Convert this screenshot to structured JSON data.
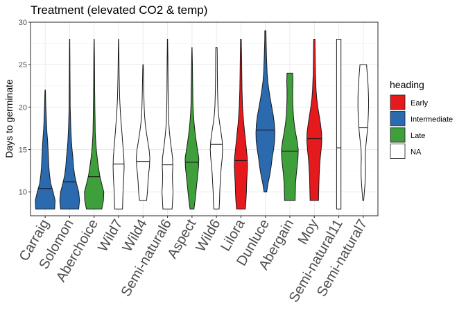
{
  "chart_data": {
    "type": "violin",
    "title": "Treatment (elevated CO2 & temp)",
    "xlabel": "",
    "ylabel": "Days to germinate",
    "ylim": [
      7.2,
      30
    ],
    "yticks": [
      10,
      15,
      20,
      25,
      30
    ],
    "grid": true,
    "legend": {
      "title": "heading",
      "placement": "right",
      "entries": [
        {
          "label": "Early",
          "color": "#e41a1c"
        },
        {
          "label": "Intermediate",
          "color": "#2b6aae"
        },
        {
          "label": "Late",
          "color": "#3e9f3b"
        },
        {
          "label": "NA",
          "color": "#ffffff"
        }
      ]
    },
    "categories": [
      "Carraig",
      "Solomon",
      "Aberchoice",
      "Wild7",
      "Wild4",
      "Semi-natural6",
      "Aspect",
      "Wild6",
      "Lilora",
      "Dunluce",
      "Abergain",
      "Moy",
      "Semi-natural11",
      "Semi-natural7"
    ],
    "violins": [
      {
        "category": "Carraig",
        "heading": "Intermediate",
        "min": 8,
        "max": 22,
        "median": 10.4,
        "profile": [
          [
            8,
            0.86
          ],
          [
            9,
            0.9
          ],
          [
            10,
            0.72
          ],
          [
            11,
            0.5
          ],
          [
            12,
            0.4
          ],
          [
            13,
            0.33
          ],
          [
            14,
            0.3
          ],
          [
            15,
            0.26
          ],
          [
            16,
            0.22
          ],
          [
            17,
            0.16
          ],
          [
            18,
            0.12
          ],
          [
            19,
            0.09
          ],
          [
            20,
            0.06
          ],
          [
            21,
            0.04
          ],
          [
            22,
            0.02
          ]
        ]
      },
      {
        "category": "Solomon",
        "heading": "Intermediate",
        "min": 8,
        "max": 28,
        "median": 11.2,
        "profile": [
          [
            8,
            0.82
          ],
          [
            9,
            0.9
          ],
          [
            10,
            0.82
          ],
          [
            11,
            0.62
          ],
          [
            12,
            0.45
          ],
          [
            13,
            0.35
          ],
          [
            14,
            0.3
          ],
          [
            15,
            0.22
          ],
          [
            16,
            0.16
          ],
          [
            17,
            0.12
          ],
          [
            18,
            0.09
          ],
          [
            19,
            0.07
          ],
          [
            20,
            0.05
          ],
          [
            22,
            0.04
          ],
          [
            24,
            0.03
          ],
          [
            26,
            0.02
          ],
          [
            28,
            0.01
          ]
        ]
      },
      {
        "category": "Aberchoice",
        "heading": "Late",
        "min": 8,
        "max": 28,
        "median": 11.8,
        "profile": [
          [
            8,
            0.7
          ],
          [
            9,
            0.85
          ],
          [
            10,
            0.88
          ],
          [
            11,
            0.68
          ],
          [
            12,
            0.5
          ],
          [
            13,
            0.38
          ],
          [
            14,
            0.28
          ],
          [
            15,
            0.2
          ],
          [
            16,
            0.14
          ],
          [
            17,
            0.1
          ],
          [
            18,
            0.09
          ],
          [
            19,
            0.08
          ],
          [
            20,
            0.07
          ],
          [
            21,
            0.06
          ],
          [
            22,
            0.05
          ],
          [
            24,
            0.04
          ],
          [
            26,
            0.03
          ],
          [
            28,
            0.01
          ]
        ]
      },
      {
        "category": "Wild7",
        "heading": "NA",
        "min": 8,
        "max": 28,
        "median": 13.3,
        "profile": [
          [
            8,
            0.36
          ],
          [
            9,
            0.38
          ],
          [
            10,
            0.4
          ],
          [
            11,
            0.44
          ],
          [
            12,
            0.48
          ],
          [
            13,
            0.5
          ],
          [
            14,
            0.48
          ],
          [
            15,
            0.42
          ],
          [
            16,
            0.36
          ],
          [
            17,
            0.3
          ],
          [
            18,
            0.24
          ],
          [
            19,
            0.18
          ],
          [
            20,
            0.14
          ],
          [
            21,
            0.1
          ],
          [
            22,
            0.08
          ],
          [
            24,
            0.05
          ],
          [
            26,
            0.03
          ],
          [
            28,
            0.01
          ]
        ]
      },
      {
        "category": "Wild4",
        "heading": "NA",
        "min": 9,
        "max": 25,
        "median": 13.6,
        "profile": [
          [
            9,
            0.32
          ],
          [
            10,
            0.4
          ],
          [
            11,
            0.44
          ],
          [
            12,
            0.5
          ],
          [
            13,
            0.58
          ],
          [
            14,
            0.62
          ],
          [
            15,
            0.55
          ],
          [
            16,
            0.42
          ],
          [
            17,
            0.3
          ],
          [
            18,
            0.2
          ],
          [
            19,
            0.14
          ],
          [
            20,
            0.1
          ],
          [
            21,
            0.08
          ],
          [
            22,
            0.06
          ],
          [
            23,
            0.05
          ],
          [
            24,
            0.04
          ],
          [
            25,
            0.02
          ]
        ]
      },
      {
        "category": "Semi-natural6",
        "heading": "NA",
        "min": 8,
        "max": 28,
        "median": 13.2,
        "profile": [
          [
            8,
            0.42
          ],
          [
            9,
            0.46
          ],
          [
            10,
            0.5
          ],
          [
            11,
            0.46
          ],
          [
            12,
            0.44
          ],
          [
            13,
            0.48
          ],
          [
            14,
            0.46
          ],
          [
            15,
            0.36
          ],
          [
            16,
            0.26
          ],
          [
            17,
            0.18
          ],
          [
            18,
            0.12
          ],
          [
            19,
            0.09
          ],
          [
            20,
            0.07
          ],
          [
            22,
            0.05
          ],
          [
            24,
            0.04
          ],
          [
            26,
            0.03
          ],
          [
            28,
            0.01
          ]
        ]
      },
      {
        "category": "Aspect",
        "heading": "Late",
        "min": 8,
        "max": 27,
        "median": 13.5,
        "profile": [
          [
            8,
            0.18
          ],
          [
            9,
            0.28
          ],
          [
            10,
            0.36
          ],
          [
            11,
            0.44
          ],
          [
            12,
            0.52
          ],
          [
            13,
            0.6
          ],
          [
            14,
            0.62
          ],
          [
            15,
            0.5
          ],
          [
            16,
            0.38
          ],
          [
            17,
            0.28
          ],
          [
            18,
            0.2
          ],
          [
            19,
            0.14
          ],
          [
            20,
            0.1
          ],
          [
            21,
            0.08
          ],
          [
            22,
            0.07
          ],
          [
            23,
            0.06
          ],
          [
            25,
            0.04
          ],
          [
            27,
            0.01
          ]
        ]
      },
      {
        "category": "Wild6",
        "heading": "NA",
        "min": 8,
        "max": 27,
        "median": 15.6,
        "profile": [
          [
            8,
            0.24
          ],
          [
            9,
            0.28
          ],
          [
            10,
            0.3
          ],
          [
            11,
            0.34
          ],
          [
            12,
            0.38
          ],
          [
            13,
            0.44
          ],
          [
            14,
            0.52
          ],
          [
            15,
            0.56
          ],
          [
            16,
            0.52
          ],
          [
            17,
            0.42
          ],
          [
            18,
            0.3
          ],
          [
            19,
            0.2
          ],
          [
            20,
            0.14
          ],
          [
            22,
            0.1
          ],
          [
            24,
            0.08
          ],
          [
            26,
            0.07
          ],
          [
            27,
            0.06
          ]
        ]
      },
      {
        "category": "Lilora",
        "heading": "Early",
        "min": 8,
        "max": 28,
        "median": 13.7,
        "profile": [
          [
            8,
            0.4
          ],
          [
            9,
            0.46
          ],
          [
            10,
            0.5
          ],
          [
            11,
            0.52
          ],
          [
            12,
            0.56
          ],
          [
            13,
            0.6
          ],
          [
            14,
            0.58
          ],
          [
            15,
            0.5
          ],
          [
            16,
            0.42
          ],
          [
            17,
            0.34
          ],
          [
            18,
            0.26
          ],
          [
            19,
            0.2
          ],
          [
            20,
            0.15
          ],
          [
            22,
            0.1
          ],
          [
            24,
            0.08
          ],
          [
            26,
            0.06
          ],
          [
            28,
            0.03
          ]
        ]
      },
      {
        "category": "Dunluce",
        "heading": "Intermediate",
        "min": 10,
        "max": 29,
        "median": 17.3,
        "profile": [
          [
            10,
            0.12
          ],
          [
            11,
            0.24
          ],
          [
            12,
            0.4
          ],
          [
            13,
            0.52
          ],
          [
            14,
            0.62
          ],
          [
            15,
            0.74
          ],
          [
            16,
            0.84
          ],
          [
            17,
            0.86
          ],
          [
            18,
            0.82
          ],
          [
            19,
            0.72
          ],
          [
            20,
            0.58
          ],
          [
            21,
            0.44
          ],
          [
            22,
            0.32
          ],
          [
            23,
            0.22
          ],
          [
            24,
            0.16
          ],
          [
            26,
            0.1
          ],
          [
            28,
            0.06
          ],
          [
            29,
            0.05
          ]
        ]
      },
      {
        "category": "Abergain",
        "heading": "Late",
        "min": 9,
        "max": 24,
        "median": 14.8,
        "profile": [
          [
            9,
            0.48
          ],
          [
            10,
            0.5
          ],
          [
            11,
            0.52
          ],
          [
            12,
            0.58
          ],
          [
            13,
            0.66
          ],
          [
            14,
            0.74
          ],
          [
            15,
            0.76
          ],
          [
            16,
            0.66
          ],
          [
            17,
            0.52
          ],
          [
            18,
            0.4
          ],
          [
            19,
            0.32
          ],
          [
            20,
            0.28
          ],
          [
            21,
            0.26
          ],
          [
            22,
            0.26
          ],
          [
            23,
            0.28
          ],
          [
            24,
            0.26
          ]
        ]
      },
      {
        "category": "Moy",
        "heading": "Early",
        "min": 9,
        "max": 28,
        "median": 16.3,
        "profile": [
          [
            9,
            0.38
          ],
          [
            10,
            0.4
          ],
          [
            11,
            0.42
          ],
          [
            12,
            0.44
          ],
          [
            13,
            0.48
          ],
          [
            14,
            0.54
          ],
          [
            15,
            0.62
          ],
          [
            16,
            0.68
          ],
          [
            17,
            0.66
          ],
          [
            18,
            0.56
          ],
          [
            19,
            0.44
          ],
          [
            20,
            0.32
          ],
          [
            21,
            0.22
          ],
          [
            22,
            0.16
          ],
          [
            24,
            0.1
          ],
          [
            26,
            0.08
          ],
          [
            28,
            0.06
          ]
        ]
      },
      {
        "category": "Semi-natural11",
        "heading": "NA",
        "min": 8,
        "max": 28,
        "median": 15.2,
        "profile": [
          [
            8,
            0.2
          ],
          [
            10,
            0.2
          ],
          [
            12,
            0.2
          ],
          [
            14,
            0.2
          ],
          [
            16,
            0.2
          ],
          [
            18,
            0.2
          ],
          [
            20,
            0.2
          ],
          [
            22,
            0.2
          ],
          [
            24,
            0.2
          ],
          [
            26,
            0.2
          ],
          [
            28,
            0.2
          ]
        ]
      },
      {
        "category": "Semi-natural7",
        "heading": "NA",
        "min": 9,
        "max": 25,
        "median": 17.6,
        "profile": [
          [
            9,
            0.04
          ],
          [
            10,
            0.1
          ],
          [
            11,
            0.16
          ],
          [
            12,
            0.2
          ],
          [
            13,
            0.2
          ],
          [
            14,
            0.18
          ],
          [
            15,
            0.2
          ],
          [
            16,
            0.28
          ],
          [
            17,
            0.36
          ],
          [
            18,
            0.42
          ],
          [
            19,
            0.46
          ],
          [
            20,
            0.48
          ],
          [
            21,
            0.48
          ],
          [
            22,
            0.46
          ],
          [
            23,
            0.42
          ],
          [
            24,
            0.36
          ],
          [
            25,
            0.3
          ]
        ]
      }
    ]
  }
}
